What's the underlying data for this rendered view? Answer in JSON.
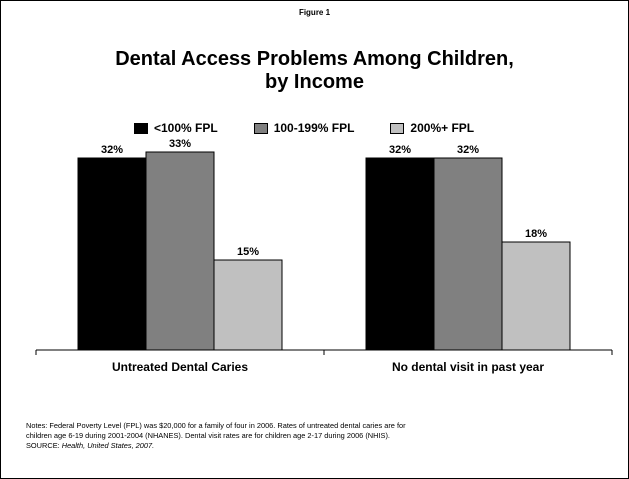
{
  "figure_label": "Figure 1",
  "title_line1": "Dental Access Problems Among Children,",
  "title_line2": "by Income",
  "colors": {
    "lt100": "#000000",
    "mid": "#808080",
    "high": "#c0c0c0"
  },
  "chart_data": {
    "type": "bar",
    "categories": [
      "Untreated Dental Caries",
      "No dental visit in past year"
    ],
    "series": [
      {
        "name": "<100% FPL",
        "values": [
          32,
          32
        ],
        "labels": [
          "32%",
          "32%"
        ]
      },
      {
        "name": "100-199% FPL",
        "values": [
          33,
          32
        ],
        "labels": [
          "33%",
          "32%"
        ]
      },
      {
        "name": "200%+ FPL",
        "values": [
          15,
          18
        ],
        "labels": [
          "15%",
          "18%"
        ]
      }
    ],
    "ylim": [
      0,
      40
    ],
    "legend": "top",
    "grid": false
  },
  "notes_line1": "Notes: Federal Poverty Level (FPL) was $20,000 for a family of four in 2006.  Rates of untreated dental caries are for",
  "notes_line2": "children age 6-19 during 2001-2004 (NHANES).  Dental visit rates are for children age 2-17 during 2006 (NHIS).",
  "source_prefix": "SOURCE: ",
  "source_title": "Health, United States, 2007."
}
